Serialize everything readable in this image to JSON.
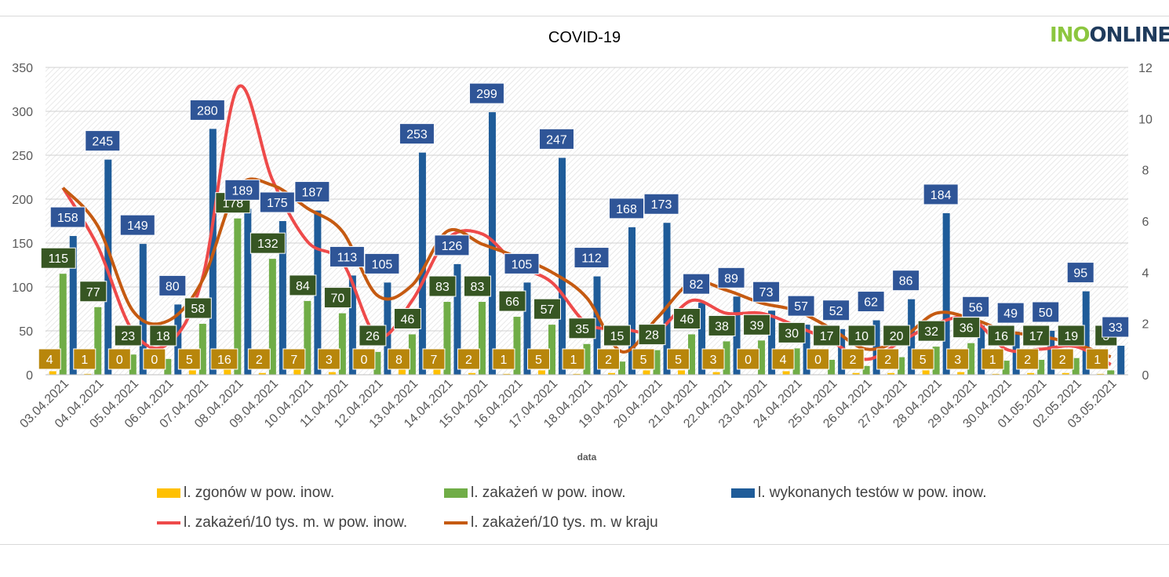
{
  "logo": {
    "part1": "INO",
    "part2": "ONLINE"
  },
  "chart_data": {
    "type": "bar",
    "title": "COVID-19",
    "xlabel": "data",
    "ylabel": "",
    "y2label": "",
    "ylim": [
      0,
      350
    ],
    "y2lim": [
      0,
      12
    ],
    "yticks": [
      0,
      50,
      100,
      150,
      200,
      250,
      300,
      350
    ],
    "y2ticks": [
      0,
      2,
      4,
      6,
      8,
      10,
      12
    ],
    "categories": [
      "03.04.2021",
      "04.04.2021",
      "05.04.2021",
      "06.04.2021",
      "07.04.2021",
      "08.04.2021",
      "09.04.2021",
      "10.04.2021",
      "11.04.2021",
      "12.04.2021",
      "13.04.2021",
      "14.04.2021",
      "15.04.2021",
      "16.04.2021",
      "17.04.2021",
      "18.04.2021",
      "19.04.2021",
      "20.04.2021",
      "21.04.2021",
      "22.04.2021",
      "23.04.2021",
      "24.04.2021",
      "25.04.2021",
      "26.04.2021",
      "27.04.2021",
      "28.04.2021",
      "29.04.2021",
      "30.04.2021",
      "01.05.2021",
      "02.05.2021",
      "03.05.2021"
    ],
    "series": [
      {
        "name": "l. zgonów w pow. inow.",
        "kind": "bar",
        "color": "#ffc000",
        "label_bg": "#b8860b",
        "values": [
          4,
          1,
          0,
          0,
          5,
          16,
          2,
          7,
          3,
          0,
          8,
          7,
          2,
          1,
          5,
          1,
          2,
          5,
          5,
          3,
          0,
          4,
          0,
          2,
          2,
          5,
          3,
          1,
          2,
          2,
          1
        ]
      },
      {
        "name": "l. zakażeń w pow. inow.",
        "kind": "bar",
        "color": "#70ad47",
        "label_bg": "#375623",
        "values": [
          115,
          77,
          23,
          18,
          58,
          178,
          132,
          84,
          70,
          26,
          46,
          83,
          83,
          66,
          57,
          35,
          15,
          28,
          46,
          38,
          39,
          30,
          17,
          10,
          20,
          32,
          36,
          16,
          17,
          19,
          5
        ]
      },
      {
        "name": "l. wykonanych testów w pow. inow.",
        "kind": "bar",
        "color": "#1f5c99",
        "label_bg": "#2f5597",
        "values": [
          158,
          245,
          149,
          80,
          280,
          189,
          175,
          187,
          113,
          105,
          253,
          126,
          299,
          105,
          247,
          112,
          168,
          173,
          82,
          89,
          73,
          57,
          52,
          62,
          86,
          184,
          56,
          49,
          50,
          95,
          33
        ]
      },
      {
        "name": "l. zakażeń/10 tys. m. w pow. inow.",
        "kind": "line",
        "axis": "right",
        "color": "#ee4a4a",
        "values": [
          7.3,
          5.0,
          1.7,
          1.2,
          3.8,
          11.2,
          7.6,
          5.2,
          4.4,
          1.5,
          2.9,
          5.3,
          5.5,
          4.3,
          3.6,
          2.0,
          1.8,
          1.7,
          2.9,
          2.4,
          2.4,
          1.9,
          1.3,
          0.6,
          1.3,
          2.0,
          2.2,
          1.0,
          1.0,
          1.1,
          0.4
        ]
      },
      {
        "name": "l. zakażeń/10 tys. m. w kraju",
        "kind": "line",
        "axis": "right",
        "color": "#c55a11",
        "values": [
          7.3,
          5.8,
          2.5,
          2.1,
          3.7,
          7.3,
          7.4,
          6.5,
          5.6,
          3.1,
          3.5,
          5.6,
          5.1,
          4.6,
          4.0,
          3.0,
          0.9,
          2.2,
          3.6,
          3.3,
          2.8,
          2.5,
          1.8,
          1.0,
          1.4,
          2.4,
          2.2,
          1.7,
          1.5,
          1.2,
          0.7
        ]
      }
    ]
  }
}
